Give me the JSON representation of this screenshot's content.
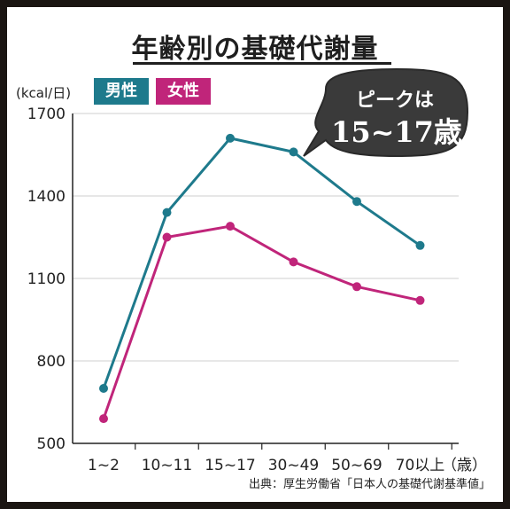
{
  "title": "年齢別の基礎代謝量",
  "unit_label": "(kcal/日)",
  "source": "出典：厚生労働省「日本人の基礎代謝基準値」",
  "callout": {
    "line1": "ピークは",
    "line2": "15~17歳"
  },
  "colors": {
    "male": "#1e7a8c",
    "female": "#c0257a",
    "grid": "#cfcfcf"
  },
  "chart_data": {
    "type": "line",
    "categories": [
      "1~2",
      "10~11",
      "15~17",
      "30~49",
      "50~69",
      "70以上"
    ],
    "x_axis_suffix": "（歳）",
    "ylabel": "(kcal/日)",
    "ylim": [
      500,
      1700
    ],
    "yticks": [
      500,
      800,
      1100,
      1400,
      1700
    ],
    "grid": true,
    "legend_position": "top-left",
    "series": [
      {
        "name": "男性",
        "color": "#1e7a8c",
        "values": [
          700,
          1340,
          1610,
          1560,
          1380,
          1220
        ]
      },
      {
        "name": "女性",
        "color": "#c0257a",
        "values": [
          590,
          1250,
          1290,
          1160,
          1070,
          1020
        ]
      }
    ]
  }
}
